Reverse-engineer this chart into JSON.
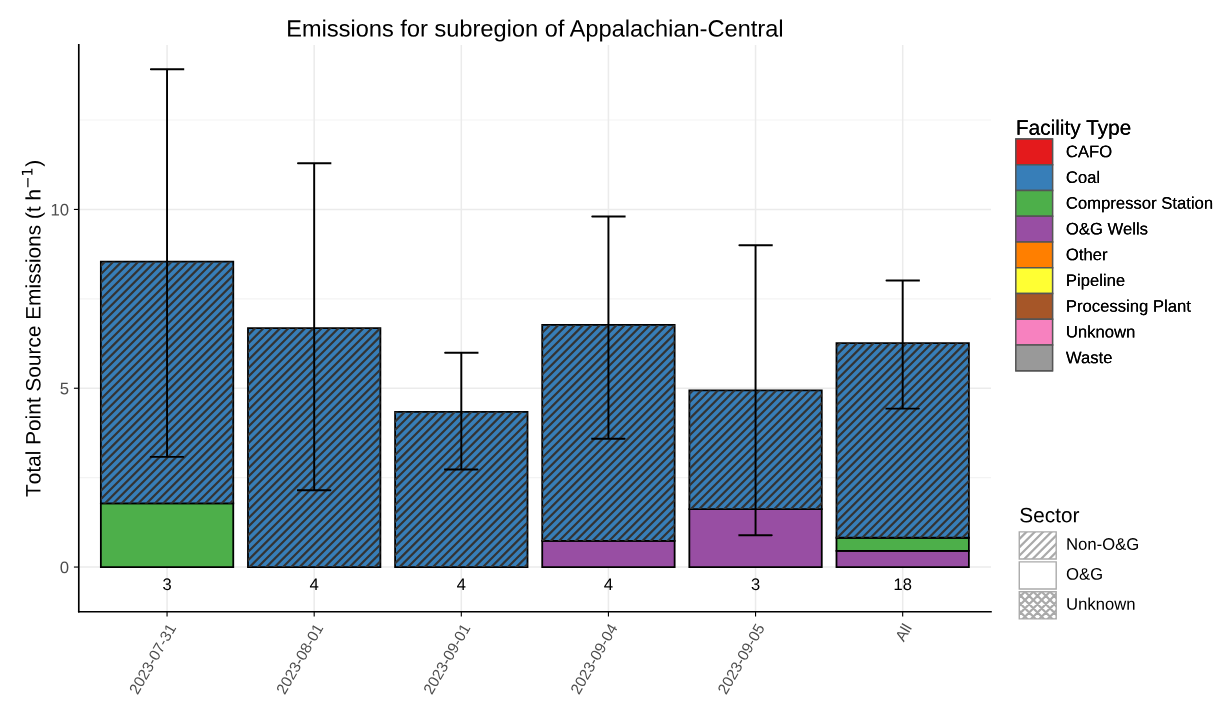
{
  "chart_data": {
    "type": "bar",
    "title": "Emissions for subregion of Appalachian-Central",
    "ylabel": "Total Point Source Emissions (t h$^{−1}$)",
    "legend_title": "Facility Type",
    "categories": [
      "2023-07-31",
      "2023-08-01",
      "2023-09-01",
      "2023-09-04",
      "2023-09-05",
      "All"
    ],
    "stacked": true,
    "series": [
      {
        "name": "CAFO",
        "color": "#e41a1c",
        "values": [
          null,
          null,
          null,
          null,
          null,
          null
        ]
      },
      {
        "name": "O&G Wells",
        "color": "#984ea3",
        "values": [
          0,
          0,
          0,
          0.73,
          1.62,
          0.45
        ]
      },
      {
        "name": "Compressor Station",
        "color": "#4daf4a",
        "values": [
          1.78,
          0,
          0,
          0,
          0,
          0.37
        ]
      },
      {
        "name": "Coal",
        "color": "#377eb8",
        "values": [
          6.76,
          6.68,
          4.34,
          6.04,
          3.32,
          5.44
        ],
        "errors": [
          [
            3.08,
            13.92
          ],
          [
            2.15,
            11.29
          ],
          [
            2.73,
            5.99
          ],
          [
            3.59,
            9.8
          ],
          [
            0.89,
            9.0
          ],
          [
            4.43,
            8.01
          ]
        ]
      },
      {
        "name": "Other",
        "color": "#ff7f00",
        "values": [
          null,
          null,
          null,
          null,
          null,
          null
        ]
      },
      {
        "name": "Pipeline",
        "color": "#ffff33",
        "values": [
          null,
          null,
          null,
          null,
          null,
          null
        ]
      },
      {
        "name": "Processing Plant",
        "color": "#a65628",
        "values": [
          null,
          null,
          null,
          null,
          null,
          null
        ]
      },
      {
        "name": "Unknown",
        "color": "#f781bf",
        "values": [
          null,
          null,
          null,
          null,
          null,
          null
        ]
      },
      {
        "name": "Waste",
        "color": "#999999",
        "values": [
          null,
          null,
          null,
          null,
          null,
          null
        ]
      }
    ],
    "annotations": [
      "3",
      "4",
      "4",
      "4",
      "3",
      "18",
      "Sector",
      "Non-O&G",
      "O&G",
      "Unknown"
    ],
    "ylim": [
      -1.25,
      14.6
    ],
    "yticks": [
      0,
      5,
      10
    ],
    "grid": true,
    "legend": "right"
  }
}
